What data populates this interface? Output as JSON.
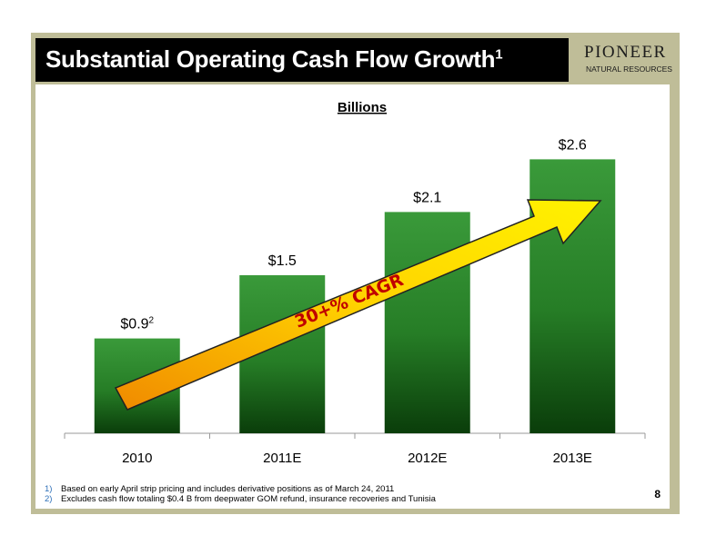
{
  "title": {
    "text": "Substantial Operating Cash Flow Growth",
    "superscript": "1"
  },
  "logo": {
    "main": "PIONEER",
    "sub": "NATURAL RESOURCES"
  },
  "chart_data": {
    "type": "bar",
    "title": "Billions",
    "categories": [
      "2010",
      "2011E",
      "2012E",
      "2013E"
    ],
    "values": [
      0.9,
      1.5,
      2.1,
      2.6
    ],
    "data_labels": [
      "$0.9",
      "$1.5",
      "$2.1",
      "$2.6"
    ],
    "label_superscripts": [
      "2",
      "",
      "",
      ""
    ],
    "ylim": [
      0,
      3.0
    ],
    "grid": false,
    "bar_color_top": "#3a9a3a",
    "bar_color_bottom": "#0a3d0a",
    "annotation": "30+% CAGR"
  },
  "footnotes": [
    {
      "num": "1)",
      "text": "Based on early April strip pricing and includes derivative positions as of March 24, 2011"
    },
    {
      "num": "2)",
      "text": "Excludes cash flow totaling $0.4 B from deepwater GOM refund, insurance recoveries and Tunisia"
    }
  ],
  "page_number": "8"
}
